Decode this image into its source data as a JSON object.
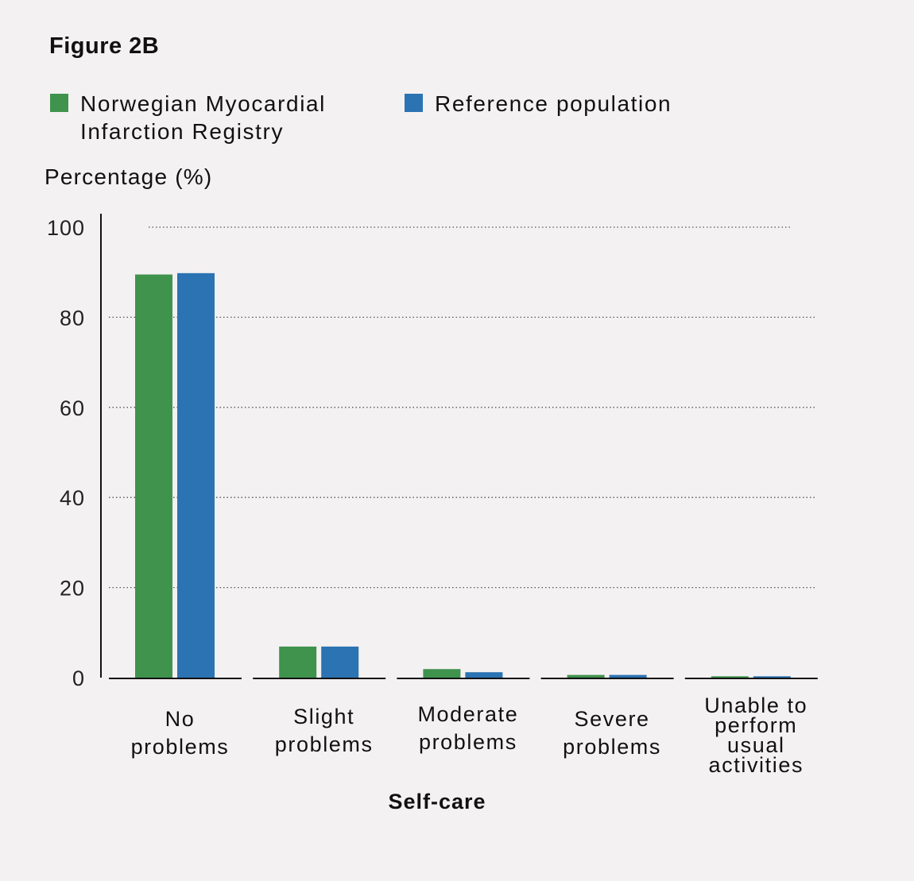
{
  "figure_title": "Figure 2B",
  "chart_data": {
    "type": "bar",
    "title": "Figure 2B",
    "xlabel": "Self-care",
    "ylabel": "Percentage (%)",
    "ylim": [
      0,
      100
    ],
    "yticks": [
      "0",
      "20",
      "40",
      "60",
      "80",
      "100"
    ],
    "grid": true,
    "legend_position": "top",
    "categories": [
      "No problems",
      "Slight problems",
      "Moderate problems",
      "Severe problems",
      "Unable to perform usual activities"
    ],
    "category_lines": [
      [
        "No",
        "problems"
      ],
      [
        "Slight",
        "problems"
      ],
      [
        "Moderate",
        "problems"
      ],
      [
        "Severe",
        "problems"
      ],
      [
        "Unable to",
        "perform",
        "usual",
        "activities"
      ]
    ],
    "series": [
      {
        "name": "Norwegian Myocardial Infarction Registry",
        "color": "#3f934d",
        "values": [
          89.5,
          6.9,
          1.9,
          0.6,
          0.3
        ]
      },
      {
        "name": "Reference population",
        "color": "#2b73b2",
        "values": [
          89.8,
          6.9,
          1.2,
          0.6,
          0.3
        ]
      }
    ]
  }
}
